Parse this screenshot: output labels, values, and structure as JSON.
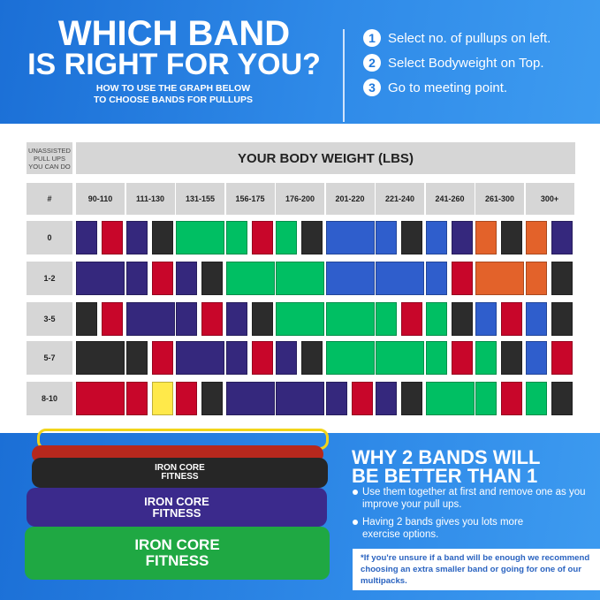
{
  "header": {
    "title_line1": "WHICH BAND",
    "title_line2": "IS RIGHT FOR YOU?",
    "subtitle_line1": "HOW TO USE THE GRAPH BELOW",
    "subtitle_line2": "TO CHOOSE BANDS FOR PULLUPS",
    "steps": [
      {
        "num": "1",
        "text": "Select no. of pullups on left."
      },
      {
        "num": "2",
        "text": "Select Bodyweight on Top."
      },
      {
        "num": "3",
        "text": "Go to meeting point."
      }
    ]
  },
  "table": {
    "corner_label": "UNASSISTED PULL UPS YOU CAN DO",
    "weight_header": "YOUR BODY WEIGHT (LBS)",
    "row_header_label": "#",
    "columns": [
      "90-110",
      "111-130",
      "131-155",
      "156-175",
      "176-200",
      "201-220",
      "221-240",
      "241-260",
      "261-300",
      "300+"
    ],
    "colors": {
      "purple": "#35287d",
      "red": "#c8062a",
      "black": "#2c2c2c",
      "green": "#00bf63",
      "blue": "#2f5ecc",
      "orange": "#e3622a",
      "yellow": "#ffe94a"
    },
    "rows": [
      {
        "label": "0",
        "bands": [
          [
            "purple",
            "red"
          ],
          [
            "purple",
            "black"
          ],
          [
            "green"
          ],
          [
            "green",
            "red"
          ],
          [
            "green",
            "black"
          ],
          [
            "blue"
          ],
          [
            "blue",
            "black"
          ],
          [
            "blue",
            "purple"
          ],
          [
            "orange",
            "black"
          ],
          [
            "orange",
            "purple"
          ]
        ]
      },
      {
        "label": "1-2",
        "bands": [
          [
            "purple"
          ],
          [
            "purple",
            "red"
          ],
          [
            "purple",
            "black"
          ],
          [
            "green"
          ],
          [
            "green"
          ],
          [
            "blue"
          ],
          [
            "blue"
          ],
          [
            "blue",
            "red"
          ],
          [
            "orange"
          ],
          [
            "orange",
            "black"
          ]
        ]
      },
      {
        "label": "3-5",
        "bands": [
          [
            "black",
            "red"
          ],
          [
            "purple"
          ],
          [
            "purple",
            "red"
          ],
          [
            "purple",
            "black"
          ],
          [
            "green"
          ],
          [
            "green"
          ],
          [
            "green",
            "red"
          ],
          [
            "green",
            "black"
          ],
          [
            "blue",
            "red"
          ],
          [
            "blue",
            "black"
          ]
        ]
      },
      {
        "label": "5-7",
        "bands": [
          [
            "black"
          ],
          [
            "black",
            "red"
          ],
          [
            "purple"
          ],
          [
            "purple",
            "red"
          ],
          [
            "purple",
            "black"
          ],
          [
            "green"
          ],
          [
            "green"
          ],
          [
            "green",
            "red"
          ],
          [
            "green",
            "black"
          ],
          [
            "blue",
            "red"
          ]
        ]
      },
      {
        "label": "8-10",
        "bands": [
          [
            "red"
          ],
          [
            "red",
            "yellow"
          ],
          [
            "red",
            "black"
          ],
          [
            "purple"
          ],
          [
            "purple"
          ],
          [
            "purple",
            "red"
          ],
          [
            "purple",
            "black"
          ],
          [
            "green"
          ],
          [
            "green",
            "red"
          ],
          [
            "green",
            "black"
          ]
        ]
      }
    ]
  },
  "bottom": {
    "heading_line1": "WHY 2 BANDS WILL",
    "heading_line2": "BE BETTER THAN 1",
    "bullets": [
      "Use them together at first and remove one as you improve your pull ups.",
      "Having 2 bands gives you lots more exercise options."
    ],
    "note": "*If you're unsure if a band will be enough we recommend choosing an extra smaller band or going for one of our multipacks.",
    "brand_logo": "IRON CORE FITNESS"
  }
}
